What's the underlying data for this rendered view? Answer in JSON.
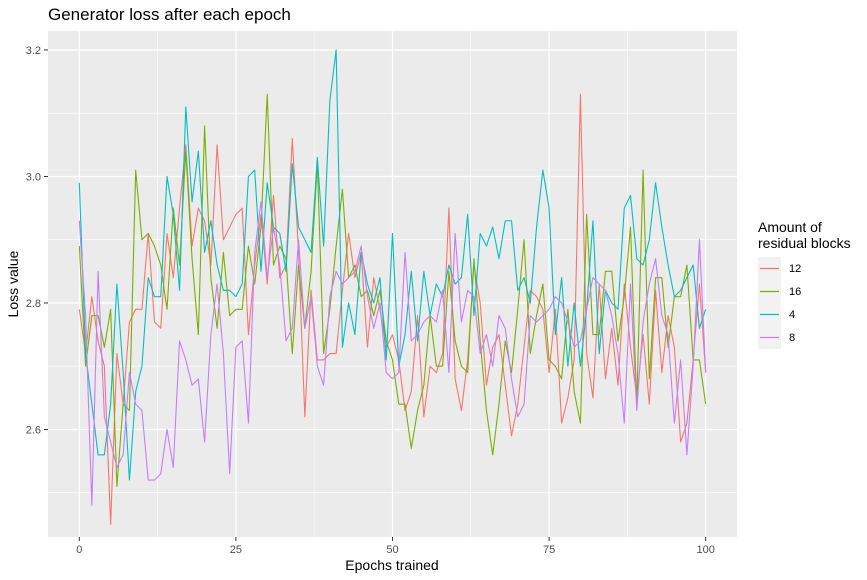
{
  "chart_data": {
    "type": "line",
    "title": "Generator loss after each epoch",
    "xlabel": "Epochs trained",
    "ylabel": "Loss value",
    "xlim": [
      -5,
      105
    ],
    "ylim": [
      2.43,
      3.23
    ],
    "x_ticks": [
      0,
      25,
      50,
      75,
      100
    ],
    "y_ticks": [
      2.6,
      2.8,
      3.0,
      3.2
    ],
    "grid": true,
    "legend": {
      "title_lines": [
        "Amount of",
        "residual blocks"
      ],
      "position": "right"
    },
    "series": [
      {
        "name": "12",
        "color": "#F8766D",
        "values": [
          2.79,
          2.72,
          2.81,
          2.74,
          2.7,
          2.45,
          2.72,
          2.64,
          2.77,
          2.79,
          2.79,
          2.91,
          2.77,
          2.76,
          2.91,
          2.84,
          2.95,
          3.05,
          2.89,
          2.95,
          2.93,
          2.86,
          3.05,
          2.9,
          2.92,
          2.94,
          2.95,
          2.75,
          2.86,
          2.94,
          2.83,
          2.97,
          2.84,
          2.86,
          3.06,
          2.88,
          2.62,
          2.82,
          2.71,
          2.71,
          2.72,
          2.72,
          2.82,
          2.91,
          2.84,
          2.88,
          2.73,
          2.84,
          2.79,
          2.73,
          2.75,
          2.71,
          2.63,
          2.66,
          2.78,
          2.62,
          2.7,
          2.69,
          2.72,
          2.95,
          2.68,
          2.63,
          2.71,
          2.86,
          2.8,
          2.67,
          2.73,
          2.75,
          2.67,
          2.59,
          2.64,
          2.73,
          2.82,
          2.81,
          2.79,
          2.69,
          2.79,
          2.61,
          2.65,
          2.71,
          3.13,
          2.72,
          2.65,
          2.83,
          2.68,
          2.76,
          2.67,
          2.83,
          2.73,
          2.65,
          2.75,
          2.64,
          2.82,
          2.69,
          2.78,
          2.73,
          2.58,
          2.61,
          2.71,
          2.83,
          2.69
        ]
      },
      {
        "name": "16",
        "color": "#7CAE00",
        "values": [
          2.89,
          2.7,
          2.78,
          2.78,
          2.73,
          2.79,
          2.51,
          2.64,
          2.63,
          3.01,
          2.9,
          2.91,
          2.89,
          2.86,
          2.79,
          2.95,
          2.86,
          3.04,
          2.87,
          2.75,
          3.08,
          2.84,
          2.76,
          2.88,
          2.78,
          2.79,
          2.79,
          2.89,
          2.83,
          2.92,
          3.13,
          2.86,
          2.89,
          2.87,
          2.72,
          2.86,
          2.76,
          2.85,
          3.02,
          2.72,
          2.79,
          2.89,
          2.98,
          2.84,
          2.86,
          2.81,
          2.82,
          2.78,
          2.82,
          2.74,
          2.71,
          2.64,
          2.64,
          2.57,
          2.63,
          2.67,
          2.78,
          2.7,
          2.7,
          2.85,
          2.74,
          2.7,
          2.69,
          2.87,
          2.74,
          2.63,
          2.56,
          2.64,
          2.74,
          2.69,
          2.79,
          2.9,
          2.72,
          2.78,
          2.83,
          2.71,
          2.7,
          2.68,
          2.79,
          2.66,
          2.61,
          2.94,
          2.75,
          2.75,
          2.85,
          2.85,
          2.74,
          2.81,
          2.92,
          2.64,
          3.01,
          2.68,
          2.84,
          2.84,
          2.73,
          2.81,
          2.81,
          2.86,
          2.71,
          2.71,
          2.64
        ]
      },
      {
        "name": "4",
        "color": "#00BFC4",
        "values": [
          2.99,
          2.72,
          2.64,
          2.56,
          2.56,
          2.64,
          2.83,
          2.69,
          2.52,
          2.66,
          2.7,
          2.84,
          2.81,
          2.81,
          3.0,
          2.94,
          2.82,
          3.11,
          2.96,
          3.04,
          2.88,
          2.93,
          2.86,
          2.82,
          2.82,
          2.81,
          2.83,
          3.0,
          3.01,
          2.85,
          2.99,
          2.92,
          2.91,
          2.85,
          3.02,
          2.92,
          2.9,
          2.88,
          3.03,
          2.89,
          3.12,
          3.2,
          2.73,
          2.8,
          2.75,
          2.88,
          2.83,
          2.8,
          2.84,
          2.71,
          2.91,
          2.7,
          2.75,
          2.85,
          2.74,
          2.85,
          2.78,
          2.83,
          2.81,
          2.86,
          2.83,
          2.84,
          2.94,
          2.78,
          2.91,
          2.89,
          2.92,
          2.87,
          2.93,
          2.93,
          2.82,
          2.84,
          2.8,
          2.92,
          3.01,
          2.95,
          2.75,
          2.84,
          2.7,
          2.8,
          2.7,
          2.79,
          2.93,
          2.72,
          2.82,
          2.8,
          2.79,
          2.95,
          2.97,
          2.87,
          2.86,
          2.9,
          2.99,
          2.92,
          2.86,
          2.81,
          2.82,
          2.84,
          2.86,
          2.76,
          2.79
        ]
      },
      {
        "name": "8",
        "color": "#C77CFF",
        "values": [
          2.93,
          2.78,
          2.48,
          2.85,
          2.62,
          2.58,
          2.54,
          2.56,
          2.69,
          2.64,
          2.63,
          2.52,
          2.52,
          2.53,
          2.6,
          2.54,
          2.74,
          2.71,
          2.67,
          2.68,
          2.58,
          2.75,
          2.83,
          2.72,
          2.53,
          2.73,
          2.74,
          2.61,
          2.88,
          2.96,
          2.84,
          2.92,
          2.86,
          2.74,
          2.76,
          2.9,
          2.76,
          2.81,
          2.7,
          2.67,
          2.81,
          2.85,
          2.83,
          2.84,
          2.85,
          2.89,
          2.81,
          2.76,
          2.8,
          2.69,
          2.68,
          2.69,
          2.88,
          2.74,
          2.75,
          2.77,
          2.78,
          2.77,
          2.82,
          2.69,
          2.91,
          2.77,
          2.82,
          2.81,
          2.72,
          2.75,
          2.7,
          2.78,
          2.76,
          2.68,
          2.62,
          2.64,
          2.78,
          2.77,
          2.78,
          2.79,
          2.81,
          2.8,
          2.77,
          2.73,
          2.74,
          2.79,
          2.84,
          2.83,
          2.82,
          2.78,
          2.72,
          2.61,
          2.83,
          2.63,
          2.77,
          2.83,
          2.87,
          2.78,
          2.75,
          2.61,
          2.71,
          2.56,
          2.7,
          2.9,
          2.69
        ]
      }
    ]
  }
}
